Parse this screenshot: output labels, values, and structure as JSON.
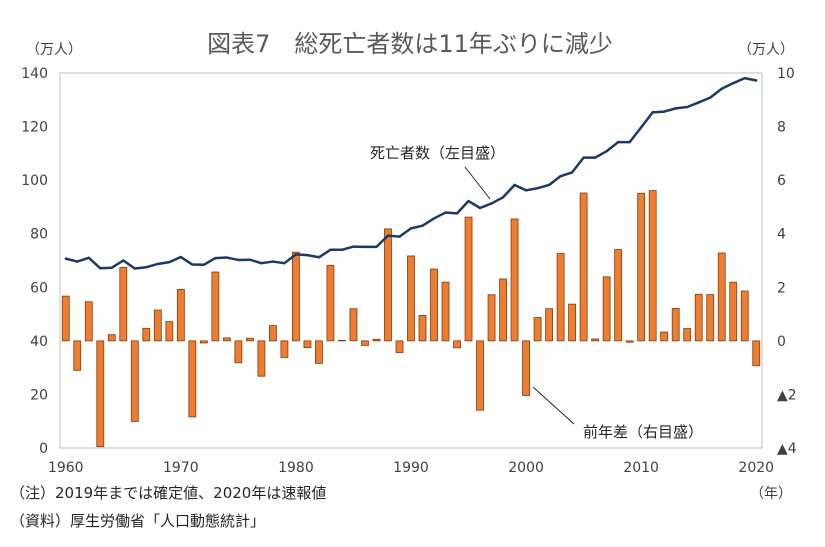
{
  "chart_data": {
    "type": "line",
    "title": "図表7　総死亡者数は11年ぶりに減少",
    "x": [
      1960,
      1961,
      1962,
      1963,
      1964,
      1965,
      1966,
      1967,
      1968,
      1969,
      1970,
      1971,
      1972,
      1973,
      1974,
      1975,
      1976,
      1977,
      1978,
      1979,
      1980,
      1981,
      1982,
      1983,
      1984,
      1985,
      1986,
      1987,
      1988,
      1989,
      1990,
      1991,
      1992,
      1993,
      1994,
      1995,
      1996,
      1997,
      1998,
      1999,
      2000,
      2001,
      2002,
      2003,
      2004,
      2005,
      2006,
      2007,
      2008,
      2009,
      2010,
      2011,
      2012,
      2013,
      2014,
      2015,
      2016,
      2017,
      2018,
      2019,
      2020
    ],
    "series": [
      {
        "name": "死亡者数（左目盛）",
        "type": "line",
        "axis": "left",
        "color": "#1F3864",
        "values": [
          70.7,
          69.6,
          71.0,
          67.1,
          67.3,
          70.0,
          67.0,
          67.5,
          68.7,
          69.4,
          71.3,
          68.5,
          68.4,
          70.9,
          71.1,
          70.2,
          70.3,
          69.0,
          69.6,
          69.0,
          72.3,
          72.0,
          71.2,
          74.0,
          74.0,
          75.2,
          75.1,
          75.1,
          79.3,
          78.9,
          82.0,
          83.0,
          85.7,
          87.9,
          87.6,
          92.2,
          89.6,
          91.3,
          93.6,
          98.2,
          96.2,
          97.0,
          98.2,
          101.5,
          102.9,
          108.4,
          108.4,
          110.8,
          114.2,
          114.2,
          119.7,
          125.3,
          125.6,
          126.8,
          127.3,
          129.0,
          130.8,
          134.1,
          136.2,
          138.1,
          137.2
        ]
      },
      {
        "name": "前年差（右目盛）",
        "type": "bar",
        "axis": "right",
        "color": "#ED7D31",
        "border_color": "#843C0C",
        "values": [
          1.67,
          -1.1,
          1.46,
          -3.95,
          0.23,
          2.74,
          -3.01,
          0.47,
          1.15,
          0.72,
          1.92,
          -2.84,
          -0.08,
          2.57,
          0.11,
          -0.82,
          0.1,
          -1.32,
          0.57,
          -0.62,
          3.31,
          -0.25,
          -0.84,
          2.82,
          0.02,
          1.2,
          -0.17,
          0.06,
          4.18,
          -0.44,
          3.17,
          0.95,
          2.68,
          2.19,
          -0.26,
          4.62,
          -2.59,
          1.72,
          2.31,
          4.55,
          -2.04,
          0.87,
          1.2,
          3.26,
          1.37,
          5.52,
          0.07,
          2.39,
          3.41,
          -0.05,
          5.51,
          5.61,
          0.33,
          1.21,
          0.46,
          1.74,
          1.73,
          3.28,
          2.19,
          1.86,
          -0.93
        ]
      }
    ],
    "x_axis": {
      "unit": "（年）",
      "range": [
        1960,
        2020
      ],
      "ticks": [
        1960,
        1970,
        1980,
        1990,
        2000,
        2010,
        2020
      ],
      "tick_labels": [
        "1960",
        "1970",
        "1980",
        "1990",
        "2000",
        "2010",
        "2020"
      ]
    },
    "y_left": {
      "unit": "（万人）",
      "range": [
        0,
        140
      ],
      "ticks": [
        0,
        20,
        40,
        60,
        80,
        100,
        120,
        140
      ],
      "tick_labels": [
        "0",
        "20",
        "40",
        "60",
        "80",
        "100",
        "120",
        "140"
      ]
    },
    "y_right": {
      "unit": "（万人）",
      "range": [
        -4,
        10
      ],
      "ticks": [
        -4,
        -2,
        0,
        2,
        4,
        6,
        8,
        10
      ],
      "tick_labels": [
        "▲4",
        "▲2",
        "0",
        "2",
        "4",
        "6",
        "8",
        "10"
      ]
    },
    "grid": false
  },
  "footnotes": {
    "note": "（注）2019年までは確定値、2020年は速報値",
    "source": "（資料）厚生労働省「人口動態統計」"
  }
}
